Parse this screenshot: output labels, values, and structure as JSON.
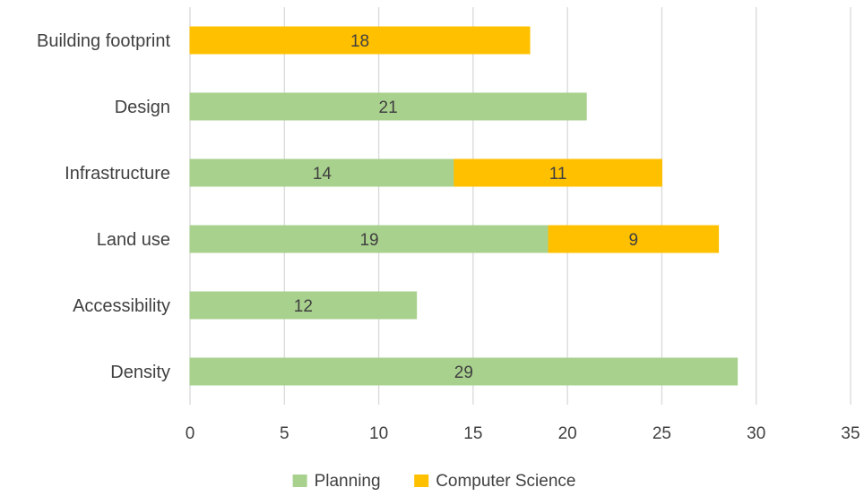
{
  "chart_data": {
    "type": "bar",
    "orientation": "horizontal",
    "stacked": true,
    "categories": [
      "Building footprint",
      "Design",
      "Infrastructure",
      "Land use",
      "Accessibility",
      "Density"
    ],
    "series": [
      {
        "name": "Planning",
        "color": "#a9d18e",
        "values": [
          0,
          21,
          14,
          19,
          12,
          29
        ]
      },
      {
        "name": "Computer Science",
        "color": "#ffc000",
        "values": [
          18,
          0,
          11,
          9,
          0,
          0
        ]
      }
    ],
    "xlim": [
      0,
      35
    ],
    "x_ticks": [
      0,
      5,
      10,
      15,
      20,
      25,
      30,
      35
    ],
    "grid": true,
    "legend_position": "bottom",
    "title": "",
    "xlabel": "",
    "ylabel": ""
  }
}
